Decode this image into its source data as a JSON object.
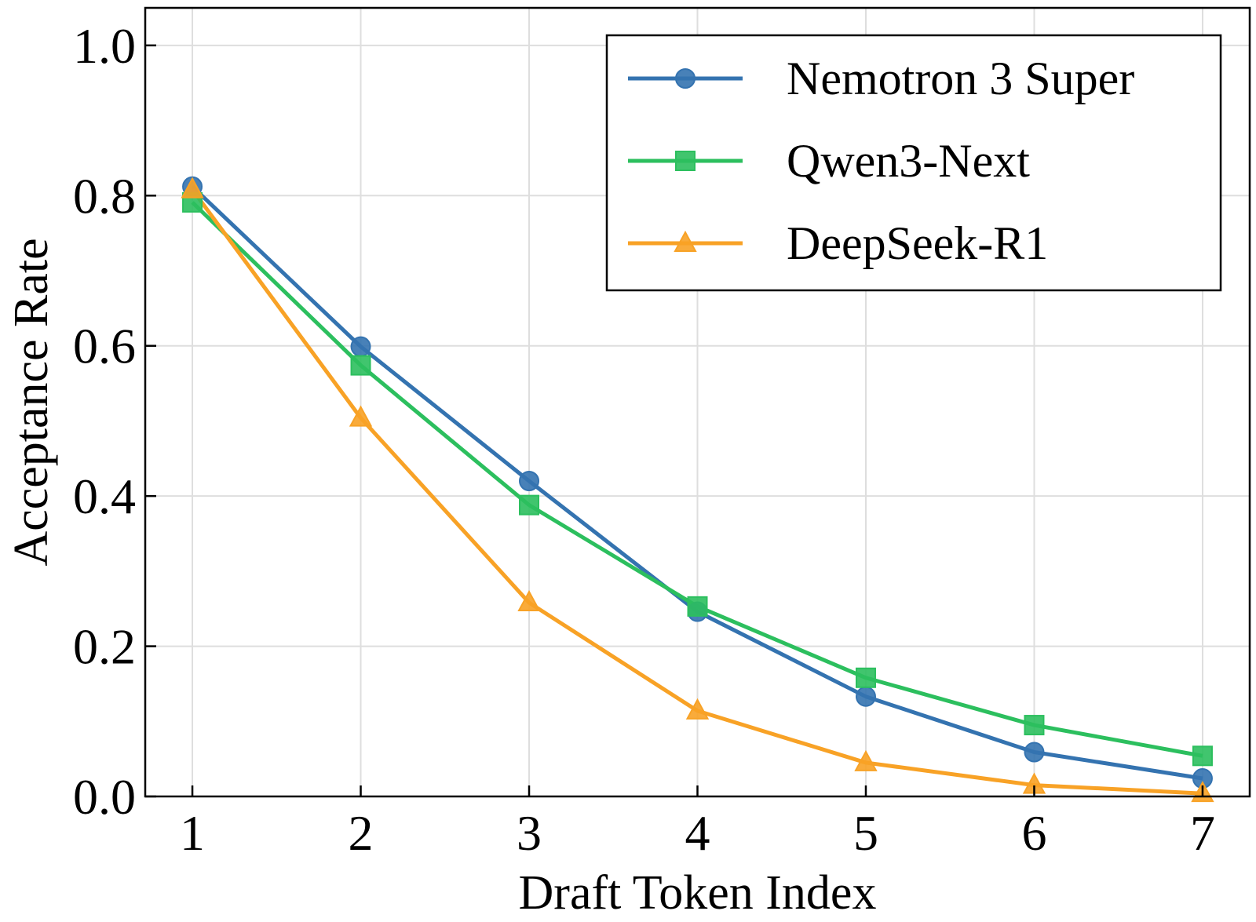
{
  "chart_data": {
    "type": "line",
    "title": "",
    "xlabel": "Draft Token Index",
    "ylabel": "Acceptance Rate",
    "x": [
      1,
      2,
      3,
      4,
      5,
      6,
      7
    ],
    "xlim": [
      0.72,
      7.28
    ],
    "ylim": [
      0.0,
      1.05
    ],
    "xticks": [
      "1",
      "2",
      "3",
      "4",
      "5",
      "6",
      "7"
    ],
    "yticks": [
      "0.0",
      "0.2",
      "0.4",
      "0.6",
      "0.8",
      "1.0"
    ],
    "grid": true,
    "legend_position": "top-right",
    "series": [
      {
        "name": "Nemotron 3 Super",
        "color": "#3473b0",
        "marker": "circle",
        "values": [
          0.812,
          0.599,
          0.42,
          0.246,
          0.133,
          0.059,
          0.024
        ]
      },
      {
        "name": "Qwen3-Next",
        "color": "#2cbf5e",
        "marker": "square",
        "values": [
          0.791,
          0.574,
          0.388,
          0.253,
          0.158,
          0.095,
          0.054
        ]
      },
      {
        "name": "DeepSeek-R1",
        "color": "#f8a226",
        "marker": "triangle",
        "values": [
          0.808,
          0.504,
          0.258,
          0.114,
          0.045,
          0.015,
          0.004
        ]
      }
    ]
  }
}
